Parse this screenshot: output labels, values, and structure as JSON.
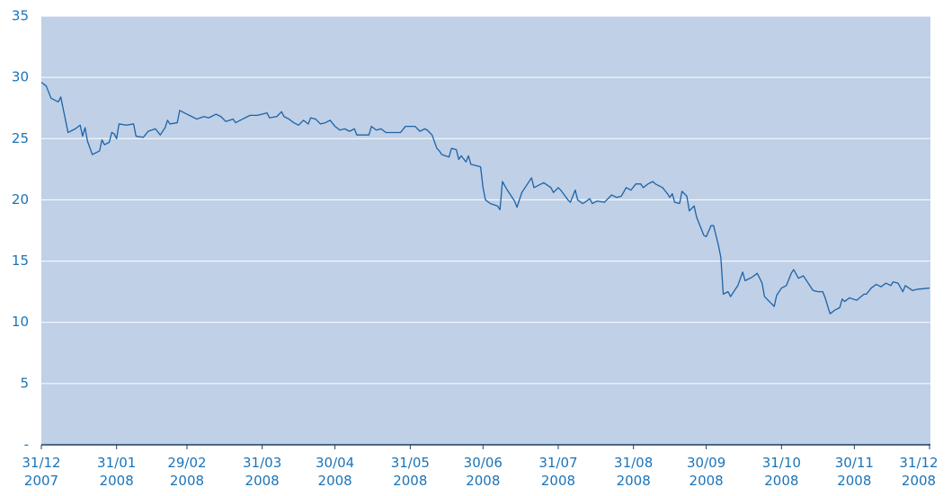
{
  "chart_data": {
    "type": "line",
    "color": "#1f63a6",
    "grid": true,
    "xlim": [
      "2007-12-31",
      "2008-12-31"
    ],
    "xticks": [
      {
        "value": "2007-12-31",
        "label": "31/12\n2007"
      },
      {
        "value": "2008-01-31",
        "label": "31/01\n2008"
      },
      {
        "value": "2008-02-29",
        "label": "29/02\n2008"
      },
      {
        "value": "2008-03-31",
        "label": "31/03\n2008"
      },
      {
        "value": "2008-04-30",
        "label": "30/04\n2008"
      },
      {
        "value": "2008-05-31",
        "label": "31/05\n2008"
      },
      {
        "value": "2008-06-30",
        "label": "30/06\n2008"
      },
      {
        "value": "2008-07-31",
        "label": "31/07\n2008"
      },
      {
        "value": "2008-08-31",
        "label": "31/08\n2008"
      },
      {
        "value": "2008-09-30",
        "label": "30/09\n2008"
      },
      {
        "value": "2008-10-31",
        "label": "31/10\n2008"
      },
      {
        "value": "2008-11-30",
        "label": "30/11\n2008"
      },
      {
        "value": "2008-12-31",
        "label": "31/12\n2008"
      }
    ],
    "ylim": [
      0,
      35
    ],
    "yticks": [
      {
        "value": 0,
        "label": "-"
      },
      5,
      10,
      15,
      20,
      25,
      30,
      35
    ],
    "x": [
      "2007-12-31",
      "2008-01-02",
      "2008-01-04",
      "2008-01-07",
      "2008-01-08",
      "2008-01-11",
      "2008-01-14",
      "2008-01-16",
      "2008-01-17",
      "2008-01-18",
      "2008-01-19",
      "2008-01-21",
      "2008-01-24",
      "2008-01-25",
      "2008-01-26",
      "2008-01-28",
      "2008-01-29",
      "2008-01-30",
      "2008-01-31",
      "2008-02-01",
      "2008-02-04",
      "2008-02-07",
      "2008-02-08",
      "2008-02-11",
      "2008-02-13",
      "2008-02-16",
      "2008-02-18",
      "2008-02-20",
      "2008-02-21",
      "2008-02-22",
      "2008-02-25",
      "2008-02-26",
      "2008-02-28",
      "2008-03-02",
      "2008-03-04",
      "2008-03-07",
      "2008-03-09",
      "2008-03-12",
      "2008-03-14",
      "2008-03-16",
      "2008-03-19",
      "2008-03-20",
      "2008-03-23",
      "2008-03-26",
      "2008-03-29",
      "2008-04-02",
      "2008-04-03",
      "2008-04-06",
      "2008-04-08",
      "2008-04-09",
      "2008-04-11",
      "2008-04-13",
      "2008-04-15",
      "2008-04-17",
      "2008-04-19",
      "2008-04-20",
      "2008-04-22",
      "2008-04-24",
      "2008-04-26",
      "2008-04-28",
      "2008-04-30",
      "2008-05-02",
      "2008-05-04",
      "2008-05-06",
      "2008-05-08",
      "2008-05-09",
      "2008-05-12",
      "2008-05-14",
      "2008-05-15",
      "2008-05-17",
      "2008-05-19",
      "2008-05-21",
      "2008-05-27",
      "2008-05-29",
      "2008-06-02",
      "2008-06-04",
      "2008-06-06",
      "2008-06-07",
      "2008-06-09",
      "2008-06-11",
      "2008-06-12",
      "2008-06-13",
      "2008-06-16",
      "2008-06-17",
      "2008-06-19",
      "2008-06-20",
      "2008-06-21",
      "2008-06-23",
      "2008-06-24",
      "2008-06-25",
      "2008-06-29",
      "2008-06-30",
      "2008-07-01",
      "2008-07-03",
      "2008-07-06",
      "2008-07-07",
      "2008-07-08",
      "2008-07-10",
      "2008-07-13",
      "2008-07-14",
      "2008-07-16",
      "2008-07-18",
      "2008-07-20",
      "2008-07-21",
      "2008-07-25",
      "2008-07-28",
      "2008-07-29",
      "2008-07-31",
      "2008-08-01",
      "2008-08-04",
      "2008-08-05",
      "2008-08-07",
      "2008-08-08",
      "2008-08-10",
      "2008-08-11",
      "2008-08-13",
      "2008-08-14",
      "2008-08-16",
      "2008-08-19",
      "2008-08-20",
      "2008-08-22",
      "2008-08-24",
      "2008-08-26",
      "2008-08-28",
      "2008-08-30",
      "2008-09-01",
      "2008-09-03",
      "2008-09-04",
      "2008-09-06",
      "2008-09-08",
      "2008-09-09",
      "2008-09-12",
      "2008-09-14",
      "2008-09-15",
      "2008-09-16",
      "2008-09-17",
      "2008-09-19",
      "2008-09-20",
      "2008-09-22",
      "2008-09-23",
      "2008-09-25",
      "2008-09-26",
      "2008-09-29",
      "2008-09-30",
      "2008-10-02",
      "2008-10-03",
      "2008-10-05",
      "2008-10-06",
      "2008-10-07",
      "2008-10-09",
      "2008-10-10",
      "2008-10-12",
      "2008-10-13",
      "2008-10-15",
      "2008-10-16",
      "2008-10-19",
      "2008-10-21",
      "2008-10-23",
      "2008-10-24",
      "2008-10-27",
      "2008-10-28",
      "2008-10-29",
      "2008-10-31",
      "2008-11-02",
      "2008-11-04",
      "2008-11-05",
      "2008-11-07",
      "2008-11-09",
      "2008-11-13",
      "2008-11-15",
      "2008-11-17",
      "2008-11-18",
      "2008-11-20",
      "2008-11-22",
      "2008-11-24",
      "2008-11-25",
      "2008-11-26",
      "2008-11-28",
      "2008-12-01",
      "2008-12-04",
      "2008-12-05",
      "2008-12-07",
      "2008-12-09",
      "2008-12-11",
      "2008-12-13",
      "2008-12-15",
      "2008-12-16",
      "2008-12-18",
      "2008-12-20",
      "2008-12-21",
      "2008-12-24",
      "2008-12-26",
      "2008-12-31"
    ],
    "values": [
      29.6,
      29.3,
      28.3,
      28.0,
      28.4,
      25.5,
      25.8,
      26.1,
      25.2,
      25.9,
      24.8,
      23.7,
      24.0,
      24.9,
      24.5,
      24.7,
      25.5,
      25.4,
      25.0,
      26.2,
      26.1,
      26.2,
      25.2,
      25.1,
      25.6,
      25.8,
      25.3,
      25.9,
      26.5,
      26.2,
      26.3,
      27.3,
      27.1,
      26.8,
      26.6,
      26.8,
      26.7,
      27.0,
      26.8,
      26.4,
      26.6,
      26.3,
      26.6,
      26.9,
      26.9,
      27.1,
      26.7,
      26.8,
      27.2,
      26.8,
      26.6,
      26.3,
      26.1,
      26.5,
      26.2,
      26.7,
      26.6,
      26.2,
      26.3,
      26.5,
      26.0,
      25.7,
      25.8,
      25.6,
      25.8,
      25.3,
      25.3,
      25.3,
      26.0,
      25.7,
      25.8,
      25.5,
      25.5,
      26.0,
      26.0,
      25.6,
      25.8,
      25.7,
      25.3,
      24.2,
      24.0,
      23.7,
      23.5,
      24.2,
      24.1,
      23.3,
      23.6,
      23.1,
      23.6,
      22.9,
      22.7,
      21.0,
      20.0,
      19.7,
      19.5,
      19.2,
      21.5,
      20.8,
      19.9,
      19.4,
      20.6,
      21.2,
      21.8,
      21.0,
      21.4,
      21.0,
      20.6,
      21.0,
      20.8,
      20.0,
      19.8,
      20.8,
      20.0,
      19.7,
      19.8,
      20.1,
      19.7,
      19.9,
      19.8,
      20.0,
      20.4,
      20.2,
      20.3,
      21.0,
      20.8,
      21.3,
      21.3,
      21.0,
      21.3,
      21.5,
      21.3,
      21.0,
      20.5,
      20.2,
      20.5,
      19.8,
      19.7,
      20.7,
      20.3,
      19.1,
      19.5,
      18.6,
      17.1,
      17.0,
      17.9,
      17.9,
      16.3,
      15.3,
      12.3,
      12.5,
      12.1,
      12.7,
      13.0,
      14.1,
      13.4,
      13.7,
      14.0,
      13.2,
      12.1,
      11.5,
      11.3,
      12.2,
      12.8,
      13.0,
      14.0,
      14.3,
      13.6,
      13.8,
      12.6,
      12.5,
      12.5,
      12.0,
      10.7,
      11.0,
      11.2,
      11.9,
      11.7,
      12.0,
      11.8,
      12.3,
      12.3,
      12.8,
      13.1,
      12.9,
      13.2,
      13.0,
      13.3,
      13.2,
      12.5,
      13.0,
      12.6,
      12.7,
      12.8
    ]
  }
}
